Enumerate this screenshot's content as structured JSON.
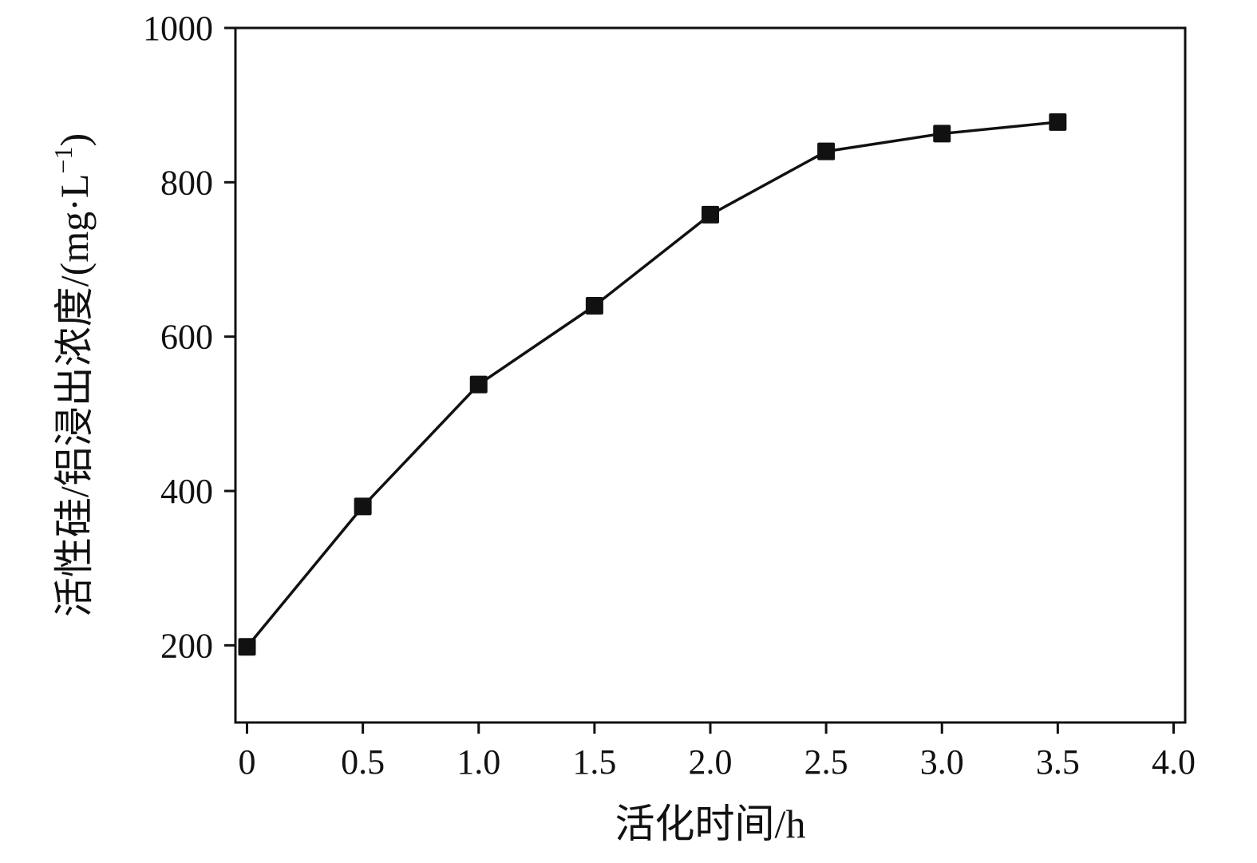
{
  "chart_data": {
    "type": "line",
    "title": "",
    "x": [
      0,
      0.5,
      1.0,
      1.5,
      2.0,
      2.5,
      3.0,
      3.5
    ],
    "values": [
      198,
      380,
      538,
      640,
      758,
      840,
      863,
      878
    ],
    "series_name": "活性硅/铝浸出浓度",
    "xlabel": "活化时间/h",
    "ylabel_main": "活性硅/铝浸出浓度/(mg·L",
    "ylabel_sup": "−1",
    "ylabel_close": ")",
    "xticks": [
      0,
      0.5,
      1.0,
      1.5,
      2.0,
      2.5,
      3.0,
      3.5,
      4.0
    ],
    "xtick_labels": [
      "0",
      "0.5",
      "1.0",
      "1.5",
      "2.0",
      "2.5",
      "3.0",
      "3.5",
      "4.0"
    ],
    "yticks": [
      200,
      400,
      600,
      800,
      1000
    ],
    "ytick_labels": [
      "200",
      "400",
      "600",
      "800",
      "1000"
    ],
    "xlim": [
      -0.05,
      4.05
    ],
    "ylim": [
      100,
      1000
    ],
    "grid": false,
    "legend": false,
    "line_color": "#111111",
    "marker": "square",
    "marker_size": 22,
    "background": "#ffffff"
  }
}
